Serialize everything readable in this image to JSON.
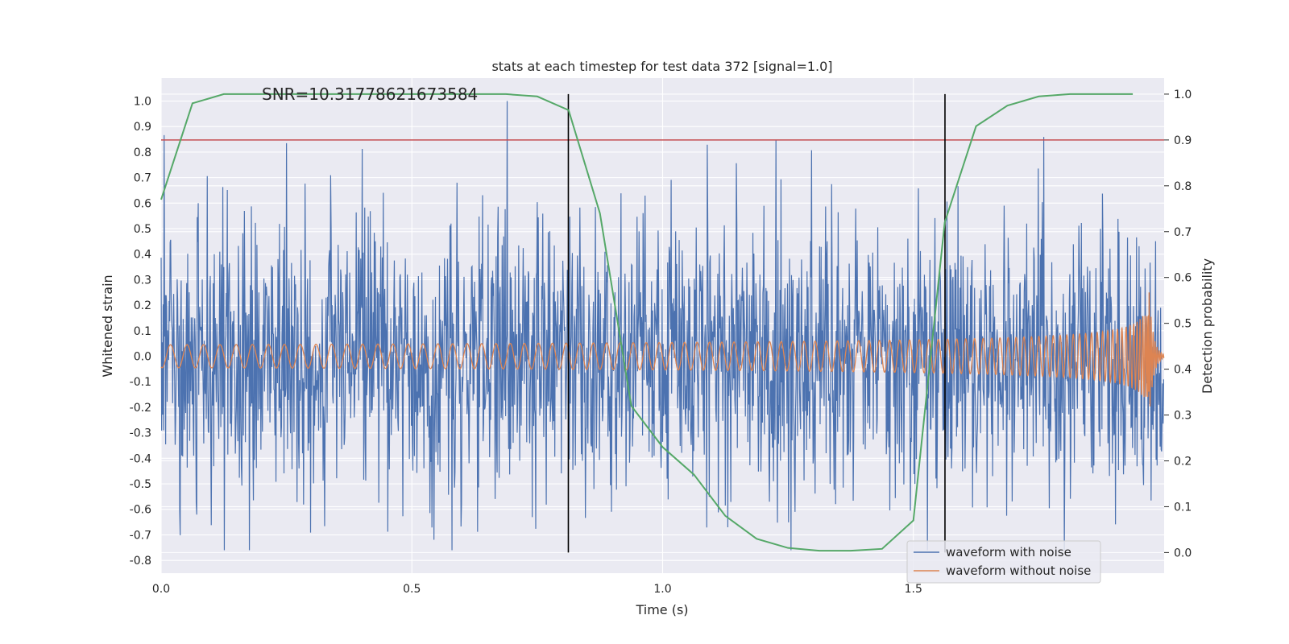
{
  "chart_data": {
    "type": "line",
    "title": "stats at each timestep for test data 372 [signal=1.0]",
    "xlabel": "Time (s)",
    "ylabel": "Whitened strain",
    "ylabel_right": "Detection probability",
    "xlim": [
      0.0,
      2.0
    ],
    "ylim": [
      -0.85,
      1.09
    ],
    "ylim_right": [
      -0.045,
      1.035
    ],
    "x_ticks": [
      "0.0",
      "0.5",
      "1.0",
      "1.5"
    ],
    "y_ticks": [
      "-0.8",
      "-0.7",
      "-0.6",
      "-0.5",
      "-0.4",
      "-0.3",
      "-0.2",
      "-0.1",
      "0.0",
      "0.1",
      "0.2",
      "0.3",
      "0.4",
      "0.5",
      "0.6",
      "0.7",
      "0.8",
      "0.9",
      "1.0"
    ],
    "y_ticks_right": [
      "0.0",
      "0.1",
      "0.2",
      "0.3",
      "0.4",
      "0.5",
      "0.6",
      "0.7",
      "0.8",
      "0.9",
      "1.0"
    ],
    "annotation": "SNR=10.31778621673584",
    "threshold": {
      "axis": "right",
      "value": 0.9,
      "color": "#c44e52"
    },
    "vlines": [
      0.812,
      1.563
    ],
    "grid": true,
    "legend_position": "lower-right",
    "series": [
      {
        "name": "waveform with noise",
        "axis": "left",
        "color": "#4c72b0",
        "noise_amplitude": 0.28,
        "noise_max": 1.0,
        "noise_min": -0.76,
        "note": "dense random noise trace, approximated"
      },
      {
        "name": "waveform without noise",
        "axis": "left",
        "color": "#dd8452",
        "chirp_amplitude_start": 0.045,
        "chirp_amplitude_peak": 0.25,
        "chirp_end_time": 1.97,
        "note": "chirp signal, approximated"
      },
      {
        "name": "Detection probability",
        "axis": "right",
        "color": "#55a868",
        "x": [
          0.0,
          0.0625,
          0.125,
          0.1875,
          0.25,
          0.3125,
          0.375,
          0.4375,
          0.5,
          0.5625,
          0.625,
          0.6875,
          0.75,
          0.8125,
          0.875,
          0.9375,
          1.0,
          1.0625,
          1.125,
          1.1875,
          1.25,
          1.3125,
          1.375,
          1.4375,
          1.5,
          1.5625,
          1.625,
          1.6875,
          1.75,
          1.8125,
          1.875,
          1.9375
        ],
        "values": [
          0.77,
          0.98,
          1.0,
          1.0,
          1.0,
          1.0,
          1.0,
          1.0,
          1.0,
          1.0,
          1.0,
          1.0,
          0.995,
          0.965,
          0.74,
          0.32,
          0.23,
          0.17,
          0.08,
          0.03,
          0.01,
          0.004,
          0.004,
          0.008,
          0.07,
          0.72,
          0.93,
          0.975,
          0.995,
          1.0,
          1.0,
          1.0
        ]
      }
    ]
  }
}
